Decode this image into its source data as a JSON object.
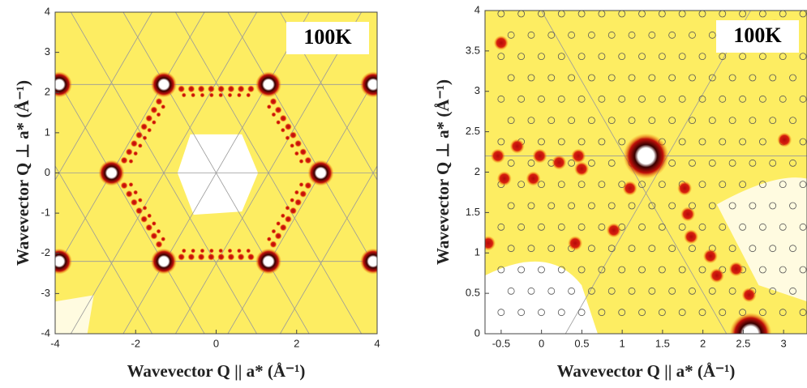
{
  "chart_data": [
    {
      "type": "image",
      "annotation": "100K",
      "x_label": "Wavevector Q || a* (Å⁻¹)",
      "y_label": "Wavevector Q ⊥ a* (Å⁻¹)",
      "xlim": [
        -4,
        4
      ],
      "xticks": [
        -4,
        -2,
        0,
        2,
        4
      ],
      "ylim": [
        -4,
        4
      ],
      "yticks": [
        -4,
        -3,
        -2,
        -1,
        0,
        1,
        2,
        3,
        4
      ]
    },
    {
      "type": "image",
      "annotation": "100K",
      "x_label": "Wavevector Q || a* (Å⁻¹)",
      "y_label": "Wavevector Q ⊥ a* (Å⁻¹)",
      "xlim": [
        -0.7,
        3.29
      ],
      "xticks": [
        -0.5,
        0,
        0.5,
        1,
        1.5,
        2,
        2.5,
        3
      ],
      "ylim": [
        0,
        4
      ],
      "yticks": [
        0,
        0.5,
        1,
        1.5,
        2,
        2.5,
        3,
        3.5,
        4
      ]
    }
  ]
}
